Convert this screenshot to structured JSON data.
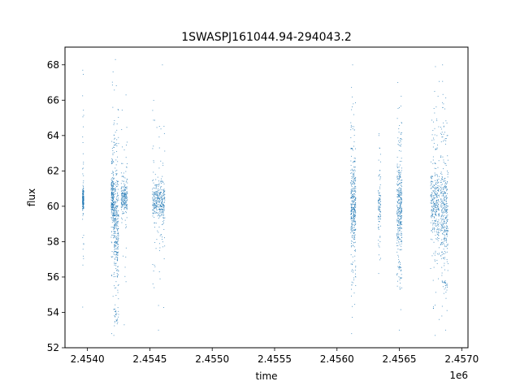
{
  "chart_data": {
    "type": "scatter",
    "title": "1SWASPJ161044.94-294043.2",
    "xlabel": "time",
    "ylabel": "flux",
    "x_offset_label": "1e6",
    "xlim": [
      2.45382,
      2.45705
    ],
    "ylim": [
      52.0,
      69.0
    ],
    "x_ticks": [
      2.454,
      2.4545,
      2.455,
      2.4555,
      2.456,
      2.4565,
      2.457
    ],
    "x_tick_labels": [
      "2.4540",
      "2.4545",
      "2.4550",
      "2.4555",
      "2.4560",
      "2.4565",
      "2.4570"
    ],
    "y_ticks": [
      52,
      54,
      56,
      58,
      60,
      62,
      64,
      66,
      68
    ],
    "y_tick_labels": [
      "52",
      "54",
      "56",
      "58",
      "60",
      "62",
      "64",
      "66",
      "68"
    ],
    "grid": false,
    "marker_color": "#1f77b4",
    "clusters": [
      {
        "x": [
          2.45396,
          2.45397
        ],
        "y_core": [
          59.6,
          61.2
        ],
        "y_extent": [
          54.3,
          67.7
        ],
        "density": 0.5
      },
      {
        "x": [
          2.45419,
          2.45421
        ],
        "y_core": [
          58.6,
          62.4
        ],
        "y_extent": [
          52.8,
          67.6
        ],
        "density": 0.6
      },
      {
        "x": [
          2.45421,
          2.45425
        ],
        "y_core": [
          54.2,
          63.4
        ],
        "y_extent": [
          52.7,
          68.3
        ],
        "density": 1.0
      },
      {
        "x": [
          2.45427,
          2.45432
        ],
        "y_core": [
          59.4,
          61.6
        ],
        "y_extent": [
          53.3,
          66.3
        ],
        "density": 0.6
      },
      {
        "x": [
          2.45452,
          2.45462
        ],
        "y_core": [
          58.8,
          61.8
        ],
        "y_extent": [
          53.0,
          68.0
        ],
        "density": 1.0
      },
      {
        "x": [
          2.45611,
          2.45615
        ],
        "y_core": [
          56.8,
          63.2
        ],
        "y_extent": [
          52.8,
          68.0
        ],
        "density": 1.0
      },
      {
        "x": [
          2.45633,
          2.45635
        ],
        "y_core": [
          58.4,
          62.0
        ],
        "y_extent": [
          56.2,
          64.1
        ],
        "density": 0.25
      },
      {
        "x": [
          2.45648,
          2.45652
        ],
        "y_core": [
          56.6,
          63.4
        ],
        "y_extent": [
          53.0,
          67.0
        ],
        "density": 1.0
      },
      {
        "x": [
          2.45675,
          2.45682
        ],
        "y_core": [
          57.5,
          63.2
        ],
        "y_extent": [
          52.7,
          67.9
        ],
        "density": 0.9
      },
      {
        "x": [
          2.45683,
          2.45689
        ],
        "y_core": [
          55.8,
          63.6
        ],
        "y_extent": [
          53.0,
          68.0
        ],
        "density": 1.0
      }
    ]
  }
}
